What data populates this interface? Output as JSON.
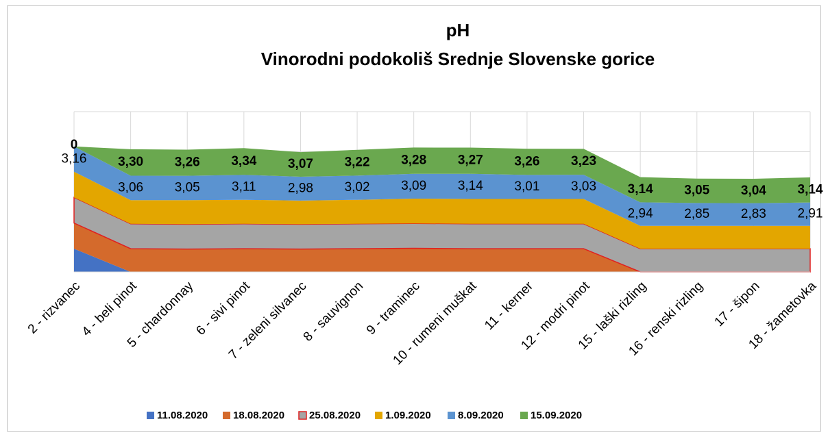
{
  "chart_data": {
    "type": "stacked_area",
    "title": "pH",
    "subtitle": "Vinorodni podokoliš Srednje Slovenske gorice",
    "categories": [
      "2 - rizvanec",
      "4 - beli pinot",
      "5 - chardonnay",
      "6 - sivi pinot",
      "7 - zeleni silvanec",
      "8 - sauvignon",
      "9 - traminec",
      "10 - rumeni muškat",
      "11 - kerner",
      "12 - modri pinot",
      "15 - laški rizling",
      "16 - renski rizling",
      "17 - šipon",
      "18 - žametovka"
    ],
    "ylim": [
      0,
      20
    ],
    "yticks": [
      0,
      5,
      10,
      15,
      20
    ],
    "grid": true,
    "legend": "bottom",
    "series": [
      {
        "name": "11.08.2020",
        "color": "#4472c4",
        "values": [
          2.9,
          0,
          0,
          0,
          0,
          0,
          0,
          0,
          0,
          0,
          0,
          0,
          0,
          0
        ]
      },
      {
        "name": "18.08.2020",
        "color": "#d46a2c",
        "values": [
          3.2,
          2.9,
          2.85,
          2.9,
          2.85,
          2.9,
          2.95,
          2.9,
          2.9,
          2.9,
          0,
          0,
          0,
          0
        ]
      },
      {
        "name": "25.08.2020",
        "color": "#a5a5a5",
        "stroke": "#e02020",
        "values": [
          3.2,
          3.1,
          3.1,
          3.1,
          3.1,
          3.1,
          3.1,
          3.1,
          3.1,
          3.1,
          2.9,
          2.9,
          2.9,
          2.9
        ]
      },
      {
        "name": "1.09.2020",
        "color": "#e3a600",
        "values": [
          3.2,
          2.95,
          3.0,
          3.0,
          2.95,
          3.0,
          3.1,
          3.1,
          3.1,
          3.1,
          2.85,
          2.85,
          2.85,
          2.85
        ]
      },
      {
        "name": "8.09.2020",
        "color": "#5b93d0",
        "values": [
          3.16,
          3.06,
          3.05,
          3.11,
          2.98,
          3.02,
          3.09,
          3.14,
          3.01,
          3.03,
          2.94,
          2.85,
          2.83,
          2.91
        ],
        "value_labels": [
          "3,16",
          "3,06",
          "3,05",
          "3,11",
          "2,98",
          "3,02",
          "3,09",
          "3,14",
          "3,01",
          "3,03",
          "2,94",
          "2,85",
          "2,83",
          "2,91"
        ]
      },
      {
        "name": "15.09.2020",
        "color": "#6aa84f",
        "values": [
          0,
          3.3,
          3.26,
          3.34,
          3.07,
          3.22,
          3.28,
          3.27,
          3.26,
          3.23,
          3.14,
          3.05,
          3.04,
          3.14
        ],
        "value_labels": [
          "0",
          "3,30",
          "3,26",
          "3,34",
          "3,07",
          "3,22",
          "3,28",
          "3,27",
          "3,26",
          "3,23",
          "3,14",
          "3,05",
          "3,04",
          "3,14"
        ]
      }
    ]
  }
}
